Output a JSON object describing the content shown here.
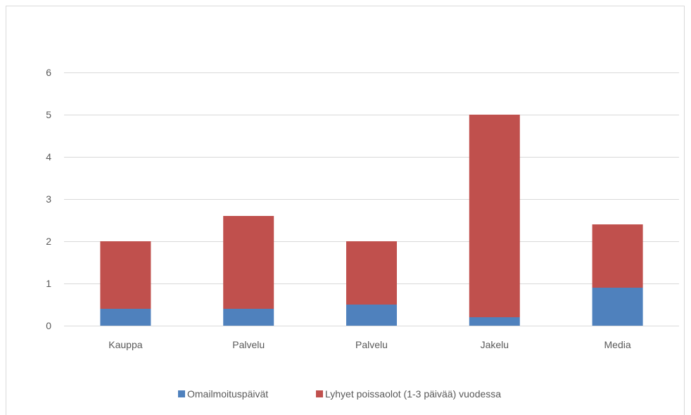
{
  "chart_data": {
    "type": "bar",
    "stacked": true,
    "categories": [
      "Kauppa",
      "Palvelu",
      "Palvelu",
      "Jakelu",
      "Media"
    ],
    "series": [
      {
        "name": "Omailmoituspäivät",
        "values": [
          0.4,
          0.4,
          0.5,
          0.2,
          0.9
        ],
        "color": "#4f81bd"
      },
      {
        "name": "Lyhyet poissaolot (1-3 päivää) vuodessa",
        "values": [
          1.6,
          2.2,
          1.5,
          4.8,
          1.5
        ],
        "color": "#c0504d"
      }
    ],
    "ylim": [
      0,
      6
    ],
    "yticks": [
      "0",
      "1",
      "2",
      "3",
      "4",
      "5",
      "6"
    ],
    "title": "",
    "xlabel": "",
    "ylabel": "",
    "grid": true,
    "legend": "bottom"
  }
}
